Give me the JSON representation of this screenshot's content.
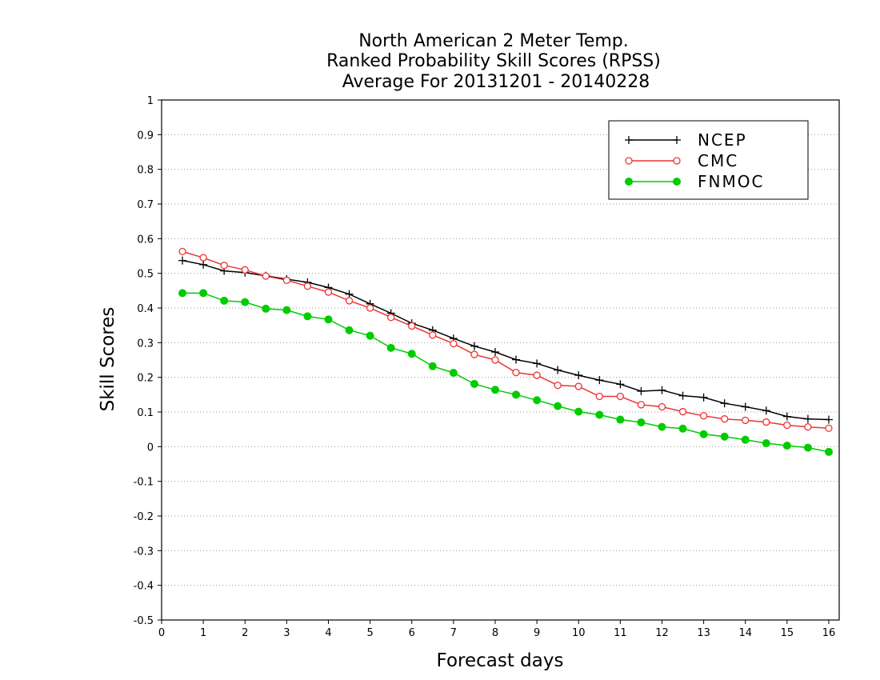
{
  "chart_data": {
    "type": "line",
    "title_lines": [
      "North American 2 Meter Temp.",
      "Ranked Probability Skill Scores (RPSS)",
      "Average For 20131201 - 20140228"
    ],
    "xlabel": "Forecast days",
    "ylabel": "Skill Scores",
    "xlim": [
      0,
      16.25
    ],
    "ylim": [
      -0.5,
      1
    ],
    "x_ticks": [
      0,
      1,
      2,
      3,
      4,
      5,
      6,
      7,
      8,
      9,
      10,
      11,
      12,
      13,
      14,
      15,
      16
    ],
    "y_ticks": [
      -0.5,
      -0.4,
      -0.3,
      -0.2,
      -0.1,
      0,
      0.1,
      0.2,
      0.3,
      0.4,
      0.5,
      0.6,
      0.7,
      0.8,
      0.9,
      1
    ],
    "grid": "horizontal dotted",
    "legend_position": "top-right",
    "x": [
      0.5,
      1,
      1.5,
      2,
      2.5,
      3,
      3.5,
      4,
      4.5,
      5,
      5.5,
      6,
      6.5,
      7,
      7.5,
      8,
      8.5,
      9,
      9.5,
      10,
      10.5,
      11,
      11.5,
      12,
      12.5,
      13,
      13.5,
      14,
      14.5,
      15,
      15.5,
      16
    ],
    "series": [
      {
        "name": "NCEP",
        "color": "#000000",
        "marker": "plus",
        "values": [
          0.537,
          0.525,
          0.507,
          0.502,
          0.493,
          0.483,
          0.474,
          0.459,
          0.44,
          0.412,
          0.385,
          0.356,
          0.336,
          0.312,
          0.29,
          0.273,
          0.251,
          0.24,
          0.221,
          0.206,
          0.192,
          0.18,
          0.16,
          0.163,
          0.147,
          0.142,
          0.125,
          0.115,
          0.104,
          0.087,
          0.08,
          0.078
        ]
      },
      {
        "name": "CMC",
        "color": "#ee3333",
        "marker": "open-circle",
        "values": [
          0.563,
          0.545,
          0.523,
          0.51,
          0.492,
          0.48,
          0.463,
          0.446,
          0.421,
          0.4,
          0.373,
          0.348,
          0.322,
          0.297,
          0.266,
          0.25,
          0.214,
          0.206,
          0.177,
          0.174,
          0.145,
          0.145,
          0.121,
          0.115,
          0.101,
          0.089,
          0.08,
          0.076,
          0.071,
          0.062,
          0.057,
          0.053
        ]
      },
      {
        "name": "FNMOC",
        "color": "#00cc00",
        "marker": "filled-circle",
        "values": [
          0.443,
          0.443,
          0.421,
          0.417,
          0.398,
          0.394,
          0.376,
          0.367,
          0.336,
          0.32,
          0.285,
          0.268,
          0.232,
          0.213,
          0.181,
          0.164,
          0.15,
          0.134,
          0.117,
          0.101,
          0.092,
          0.078,
          0.07,
          0.057,
          0.052,
          0.036,
          0.029,
          0.02,
          0.01,
          0.003,
          -0.003,
          -0.015
        ]
      }
    ]
  }
}
